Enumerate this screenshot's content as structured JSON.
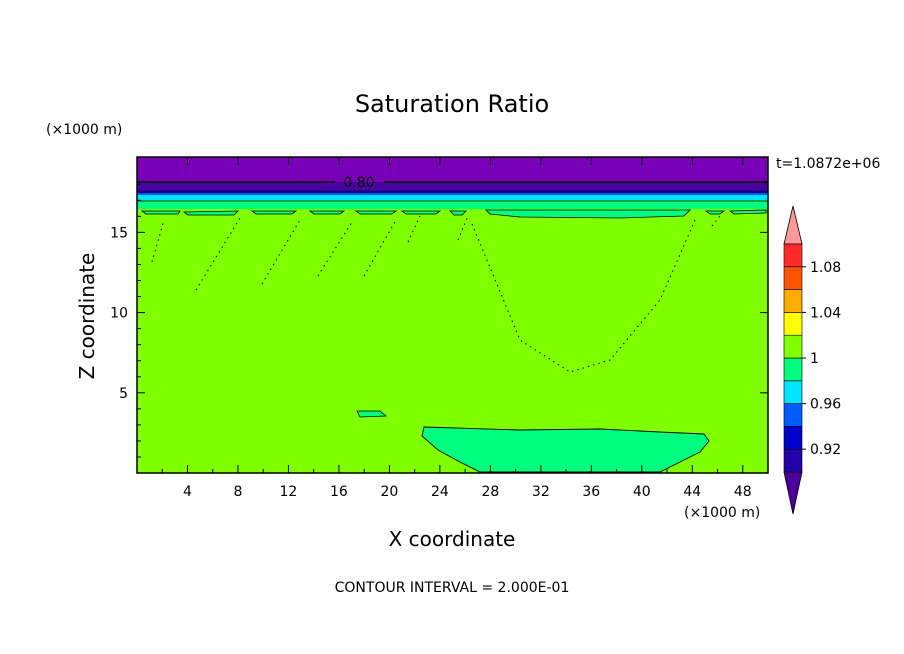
{
  "chart_data": {
    "type": "heatmap",
    "title": "Saturation Ratio",
    "xlabel": "X coordinate",
    "ylabel": "Z coordinate",
    "x_unit": "(×1000 m)",
    "y_unit": "(×1000 m)",
    "xlim": [
      0,
      50
    ],
    "ylim": [
      0,
      19.7
    ],
    "x_ticks": [
      4,
      8,
      12,
      16,
      20,
      24,
      28,
      32,
      36,
      40,
      44,
      48
    ],
    "y_ticks": [
      5,
      10,
      15
    ],
    "time_label": "t=1.0872e+06",
    "contour_interval_label": "CONTOUR INTERVAL = 2.000E-01",
    "contour_line_label": "0.80",
    "colorbar": {
      "levels": [
        0.9,
        0.92,
        0.94,
        0.96,
        0.98,
        1.0,
        1.02,
        1.04,
        1.06,
        1.08,
        1.1
      ],
      "labels": [
        "0.92",
        "0.96",
        "1",
        "1.04",
        "1.08"
      ],
      "colors": [
        "#4b0099",
        "#2300a8",
        "#0000cc",
        "#005cff",
        "#00e5ff",
        "#00ff7f",
        "#80ff00",
        "#ffff00",
        "#ffaa00",
        "#ff5500",
        "#ff2a2a",
        "#ff9999"
      ],
      "extend": "both"
    },
    "regions": [
      {
        "value": "1",
        "description_color": "#80ff00",
        "extent": "z 0–16.5 background"
      },
      {
        "value": "<0.90",
        "color": "#7a00b8",
        "extent": "z 17.9–19.7 top layer"
      },
      {
        "value": "0.98",
        "color": "#00ff7f",
        "extent": "x 22–45, z 0–2.8 lower cell"
      },
      {
        "value": "0.98",
        "color": "#00ff7f",
        "extent": "x 17.7–19.5, z 3.6–4.0 small patch"
      }
    ]
  }
}
